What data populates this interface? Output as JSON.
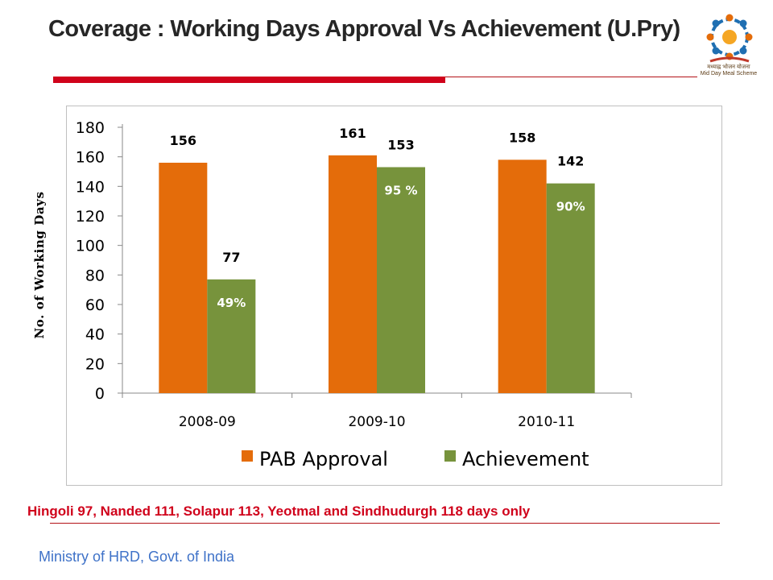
{
  "slide": {
    "title": "Coverage : Working Days Approval Vs Achievement (U.Pry)",
    "footnote": "Hingoli 97, Nanded 111, Solapur 113, Yeotmal and Sindhudurgh 118 days only",
    "source": "Ministry of HRD, Govt. of India",
    "logo_caption_line1": "मध्याह्न भोजन योजना",
    "logo_caption_line2": "Mid Day Meal Scheme"
  },
  "colors": {
    "title": "#262626",
    "accent_red": "#d0021b",
    "pab": "#e46c0a",
    "achievement": "#77933c",
    "source_blue": "#3f72c8"
  },
  "chart_data": {
    "type": "bar",
    "categories": [
      "2008-09",
      "2009-10",
      "2010-11"
    ],
    "series": [
      {
        "name": "PAB Approval",
        "values": [
          156,
          161,
          158
        ],
        "color": "#e46c0a"
      },
      {
        "name": "Achievement",
        "values": [
          77,
          153,
          142
        ],
        "color": "#77933c",
        "inner_labels": [
          "49%",
          "95 %",
          "90%"
        ]
      }
    ],
    "ylabel": "No. of Working Days",
    "xlabel": "",
    "ylim": [
      0,
      180
    ],
    "yticks": [
      0,
      20,
      40,
      60,
      80,
      100,
      120,
      140,
      160,
      180
    ],
    "grid": false,
    "legend": "bottom"
  }
}
